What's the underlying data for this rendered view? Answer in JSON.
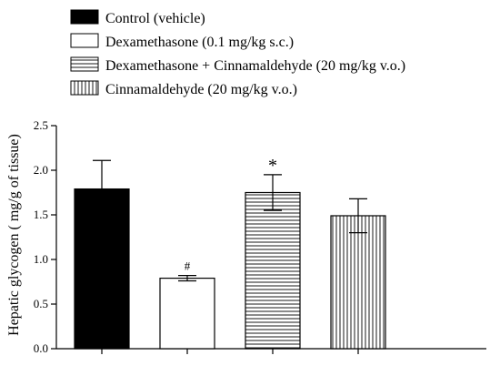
{
  "chart_data": {
    "type": "bar",
    "title": "",
    "xlabel": "",
    "ylabel": "Hepatic glycogen ( mg/g of tissue)",
    "ylim": [
      0,
      2.5
    ],
    "yticks": [
      "0.0",
      "0.5",
      "1.0",
      "1.5",
      "2.0",
      "2.5"
    ],
    "legend_position": "top",
    "grid": false,
    "series": [
      {
        "name": "Control (vehicle)",
        "value": 1.79,
        "error": 0.32,
        "fill": "solid",
        "color": "#000000",
        "annotation": ""
      },
      {
        "name": "Dexamethasone (0.1 mg/kg s.c.)",
        "value": 0.79,
        "error": 0.03,
        "fill": "empty",
        "color": "#ffffff",
        "annotation": "#"
      },
      {
        "name": "Dexamethasone + Cinnamaldehyde (20 mg/kg v.o.)",
        "value": 1.75,
        "error": 0.2,
        "fill": "horizontal-lines",
        "color": "#ffffff",
        "annotation": "*"
      },
      {
        "name": "Cinnamaldehyde (20 mg/kg v.o.)",
        "value": 1.49,
        "error": 0.19,
        "fill": "vertical-lines",
        "color": "#ffffff",
        "annotation": ""
      }
    ]
  }
}
